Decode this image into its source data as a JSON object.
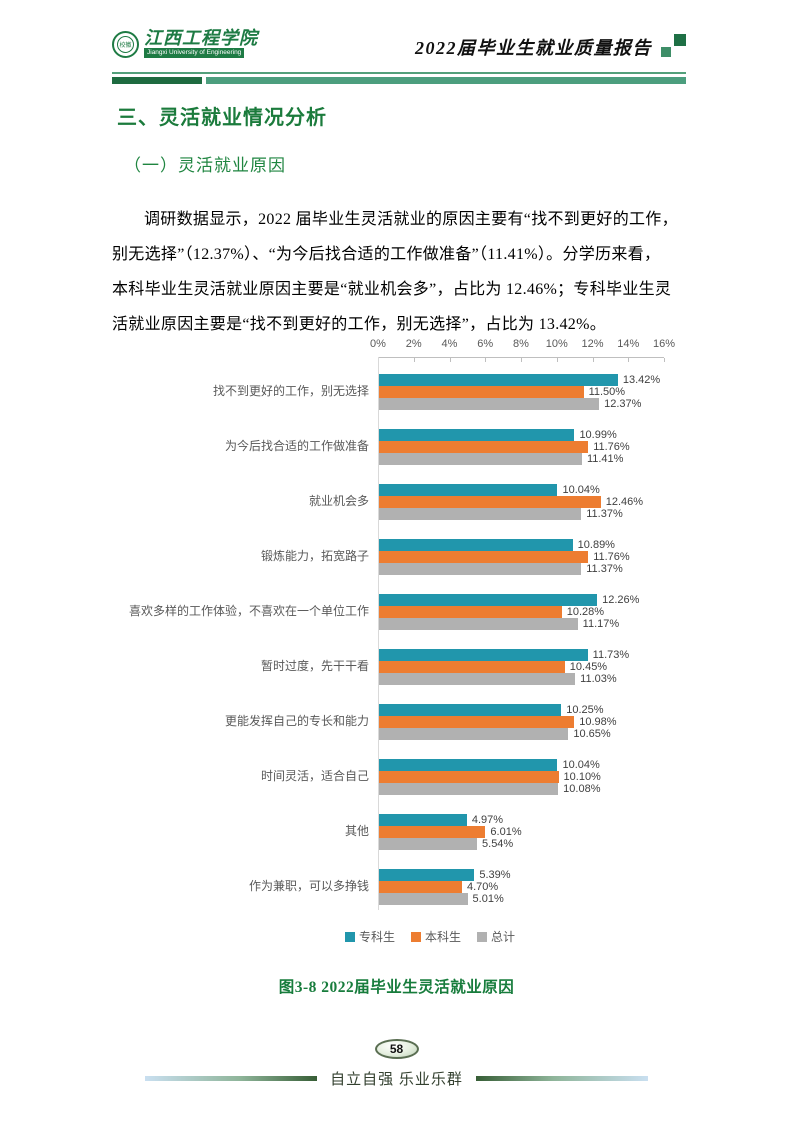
{
  "header": {
    "university_cn": "江西工程学院",
    "university_en": "Jiangxi University of Engineering",
    "seal_label": "校徽",
    "report_title": "2022届毕业生就业质量报告"
  },
  "headings": {
    "section": "三、灵活就业情况分析",
    "subsection": "（一）灵活就业原因"
  },
  "paragraph": {
    "lines": [
      "调研数据显示，2022 届毕业生灵活就业的原因主要有“找不到更好的工作，",
      "别无选择”（12.37%）、“为今后找合适的工作做准备”（11.41%）。分学历来看，",
      "本科毕业生灵活就业原因主要是“就业机会多”，占比为 12.46%；专科毕业生灵",
      "活就业原因主要是“找不到更好的工作，别无选择”，占比为 13.42%。"
    ]
  },
  "chart_data": {
    "type": "bar",
    "orientation": "horizontal",
    "title": "",
    "categories": [
      "找不到更好的工作，别无选择",
      "为今后找合适的工作做准备",
      "就业机会多",
      "锻炼能力，拓宽路子",
      "喜欢多样的工作体验，不喜欢在一个单位工作",
      "暂时过度，先干干看",
      "更能发挥自己的专长和能力",
      "时间灵活，适合自己",
      "其他",
      "作为兼职，可以多挣钱"
    ],
    "series": [
      {
        "name": "专科生",
        "color": "#2196AC",
        "values": [
          13.42,
          10.99,
          10.04,
          10.89,
          12.26,
          11.73,
          10.25,
          10.04,
          4.97,
          5.39
        ]
      },
      {
        "name": "本科生",
        "color": "#ED7D31",
        "values": [
          11.5,
          11.76,
          12.46,
          11.76,
          10.28,
          10.45,
          10.98,
          10.1,
          6.01,
          4.7
        ]
      },
      {
        "name": "总计",
        "color": "#B1B1B1",
        "values": [
          12.37,
          11.41,
          11.37,
          11.37,
          11.17,
          11.03,
          10.65,
          10.08,
          5.54,
          5.01
        ]
      }
    ],
    "x_axis": {
      "ticks": [
        "0%",
        "2%",
        "4%",
        "6%",
        "8%",
        "10%",
        "12%",
        "14%",
        "16%"
      ],
      "min": 0,
      "max": 16
    },
    "value_label_format": "0.00%",
    "grid": false,
    "legend_position": "bottom"
  },
  "caption": "图3-8  2022届毕业生灵活就业原因",
  "footer": {
    "page_number": "58",
    "slogan": "自立自强  乐业乐群"
  },
  "colors": {
    "heading_green": "#1B7B3C",
    "caption_green": "#177C3C",
    "bar_teal": "#2196AC",
    "bar_orange": "#ED7D31",
    "bar_gray": "#B1B1B1",
    "header_bar_dark": "#1E6B40",
    "header_bar_light": "#4C9E7E",
    "axis_text_gray": "#595959"
  }
}
